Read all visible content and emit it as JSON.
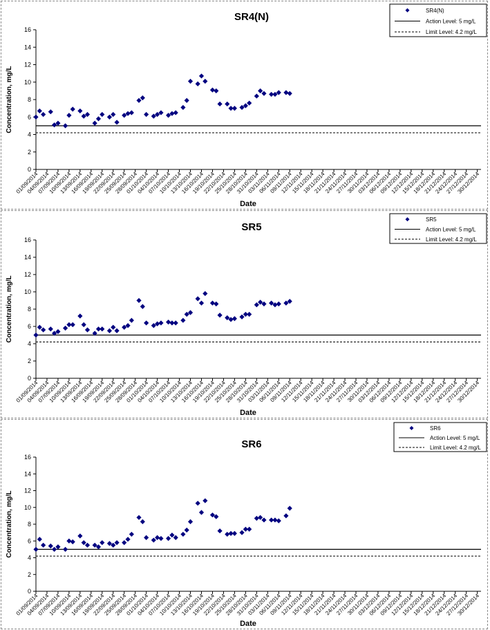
{
  "chart_data": [
    {
      "type": "scatter",
      "title": "SR4(N)",
      "xlabel": "Date",
      "ylabel": "Concentration, mg/L",
      "ylim": [
        0,
        16
      ],
      "yticks": [
        "0",
        "2",
        "4",
        "6",
        "8",
        "10",
        "12",
        "14",
        "16"
      ],
      "xlim": [
        "01/09/2014",
        "31/12/2014"
      ],
      "xticks": [
        "01/09/2014",
        "04/09/2014",
        "07/09/2014",
        "10/09/2014",
        "13/09/2014",
        "16/09/2014",
        "19/09/2014",
        "22/09/2014",
        "25/09/2014",
        "28/09/2014",
        "01/10/2014",
        "04/10/2014",
        "07/10/2014",
        "10/10/2014",
        "13/10/2014",
        "16/10/2014",
        "19/10/2014",
        "22/10/2014",
        "25/10/2014",
        "28/10/2014",
        "31/10/2014",
        "03/11/2014",
        "06/11/2014",
        "09/11/2014",
        "12/11/2014",
        "15/11/2014",
        "18/11/2014",
        "21/11/2014",
        "24/11/2014",
        "27/11/2014",
        "30/11/2014",
        "03/12/2014",
        "06/12/2014",
        "09/12/2014",
        "12/12/2014",
        "15/12/2014",
        "18/12/2014",
        "21/12/2014",
        "24/12/2014",
        "27/12/2014",
        "30/12/2014"
      ],
      "grid": false,
      "legend_position": "top-right",
      "marker_color": "#000080",
      "series": [
        {
          "name": "SR4(N)",
          "points": [
            {
              "x": "01/09/2014",
              "y": 6.0
            },
            {
              "x": "02/09/2014",
              "y": 6.7
            },
            {
              "x": "03/09/2014",
              "y": 6.3
            },
            {
              "x": "05/09/2014",
              "y": 6.6
            },
            {
              "x": "06/09/2014",
              "y": 5.1
            },
            {
              "x": "07/09/2014",
              "y": 5.3
            },
            {
              "x": "09/09/2014",
              "y": 5.0
            },
            {
              "x": "10/09/2014",
              "y": 6.2
            },
            {
              "x": "11/09/2014",
              "y": 6.9
            },
            {
              "x": "13/09/2014",
              "y": 6.7
            },
            {
              "x": "14/09/2014",
              "y": 6.1
            },
            {
              "x": "15/09/2014",
              "y": 6.3
            },
            {
              "x": "17/09/2014",
              "y": 5.3
            },
            {
              "x": "18/09/2014",
              "y": 5.8
            },
            {
              "x": "19/09/2014",
              "y": 6.3
            },
            {
              "x": "21/09/2014",
              "y": 6.0
            },
            {
              "x": "22/09/2014",
              "y": 6.3
            },
            {
              "x": "23/09/2014",
              "y": 5.4
            },
            {
              "x": "25/09/2014",
              "y": 6.2
            },
            {
              "x": "26/09/2014",
              "y": 6.4
            },
            {
              "x": "27/09/2014",
              "y": 6.5
            },
            {
              "x": "29/09/2014",
              "y": 7.9
            },
            {
              "x": "30/09/2014",
              "y": 8.2
            },
            {
              "x": "01/10/2014",
              "y": 6.3
            },
            {
              "x": "03/10/2014",
              "y": 6.1
            },
            {
              "x": "04/10/2014",
              "y": 6.3
            },
            {
              "x": "05/10/2014",
              "y": 6.5
            },
            {
              "x": "07/10/2014",
              "y": 6.2
            },
            {
              "x": "08/10/2014",
              "y": 6.4
            },
            {
              "x": "09/10/2014",
              "y": 6.5
            },
            {
              "x": "11/10/2014",
              "y": 7.1
            },
            {
              "x": "12/10/2014",
              "y": 7.9
            },
            {
              "x": "13/10/2014",
              "y": 10.1
            },
            {
              "x": "15/10/2014",
              "y": 9.8
            },
            {
              "x": "16/10/2014",
              "y": 10.7
            },
            {
              "x": "17/10/2014",
              "y": 10.1
            },
            {
              "x": "19/10/2014",
              "y": 9.1
            },
            {
              "x": "20/10/2014",
              "y": 9.0
            },
            {
              "x": "21/10/2014",
              "y": 7.5
            },
            {
              "x": "23/10/2014",
              "y": 7.5
            },
            {
              "x": "24/10/2014",
              "y": 7.0
            },
            {
              "x": "25/10/2014",
              "y": 7.0
            },
            {
              "x": "27/10/2014",
              "y": 7.1
            },
            {
              "x": "28/10/2014",
              "y": 7.3
            },
            {
              "x": "29/10/2014",
              "y": 7.6
            },
            {
              "x": "31/10/2014",
              "y": 8.4
            },
            {
              "x": "01/11/2014",
              "y": 9.0
            },
            {
              "x": "02/11/2014",
              "y": 8.7
            },
            {
              "x": "04/11/2014",
              "y": 8.6
            },
            {
              "x": "05/11/2014",
              "y": 8.6
            },
            {
              "x": "06/11/2014",
              "y": 8.8
            },
            {
              "x": "08/11/2014",
              "y": 8.8
            },
            {
              "x": "09/11/2014",
              "y": 8.7
            }
          ]
        },
        {
          "name": "Action Level: 5 mg/L",
          "line_style": "solid",
          "y": 5.0
        },
        {
          "name": "Limit Level: 4.2 mg/L",
          "line_style": "dashed",
          "y": 4.2
        }
      ]
    },
    {
      "type": "scatter",
      "title": "SR5",
      "xlabel": "Date",
      "ylabel": "Concentration, mg/L",
      "ylim": [
        0,
        16
      ],
      "yticks": [
        "0",
        "2",
        "4",
        "6",
        "8",
        "10",
        "12",
        "14",
        "16"
      ],
      "xlim": [
        "01/09/2014",
        "31/12/2014"
      ],
      "xticks": [
        "01/09/2014",
        "04/09/2014",
        "07/09/2014",
        "10/09/2014",
        "13/09/2014",
        "16/09/2014",
        "19/09/2014",
        "22/09/2014",
        "25/09/2014",
        "28/09/2014",
        "01/10/2014",
        "04/10/2014",
        "07/10/2014",
        "10/10/2014",
        "13/10/2014",
        "16/10/2014",
        "19/10/2014",
        "22/10/2014",
        "25/10/2014",
        "28/10/2014",
        "31/10/2014",
        "03/11/2014",
        "06/11/2014",
        "09/11/2014",
        "12/11/2014",
        "15/11/2014",
        "18/11/2014",
        "21/11/2014",
        "24/11/2014",
        "27/11/2014",
        "30/11/2014",
        "03/12/2014",
        "06/12/2014",
        "09/12/2014",
        "12/12/2014",
        "15/12/2014",
        "18/12/2014",
        "21/12/2014",
        "24/12/2014",
        "27/12/2014",
        "30/12/2014"
      ],
      "grid": false,
      "legend_position": "top-right",
      "marker_color": "#000080",
      "series": [
        {
          "name": "SR5",
          "points": [
            {
              "x": "01/09/2014",
              "y": 5.0
            },
            {
              "x": "02/09/2014",
              "y": 5.9
            },
            {
              "x": "03/09/2014",
              "y": 5.6
            },
            {
              "x": "05/09/2014",
              "y": 5.7
            },
            {
              "x": "06/09/2014",
              "y": 5.2
            },
            {
              "x": "07/09/2014",
              "y": 5.4
            },
            {
              "x": "09/09/2014",
              "y": 5.8
            },
            {
              "x": "10/09/2014",
              "y": 6.2
            },
            {
              "x": "11/09/2014",
              "y": 6.2
            },
            {
              "x": "13/09/2014",
              "y": 7.2
            },
            {
              "x": "14/09/2014",
              "y": 6.2
            },
            {
              "x": "15/09/2014",
              "y": 5.6
            },
            {
              "x": "17/09/2014",
              "y": 5.2
            },
            {
              "x": "18/09/2014",
              "y": 5.7
            },
            {
              "x": "19/09/2014",
              "y": 5.7
            },
            {
              "x": "21/09/2014",
              "y": 5.5
            },
            {
              "x": "22/09/2014",
              "y": 5.9
            },
            {
              "x": "23/09/2014",
              "y": 5.5
            },
            {
              "x": "25/09/2014",
              "y": 5.9
            },
            {
              "x": "26/09/2014",
              "y": 6.1
            },
            {
              "x": "27/09/2014",
              "y": 6.7
            },
            {
              "x": "29/09/2014",
              "y": 9.0
            },
            {
              "x": "30/09/2014",
              "y": 8.3
            },
            {
              "x": "01/10/2014",
              "y": 6.4
            },
            {
              "x": "03/10/2014",
              "y": 6.1
            },
            {
              "x": "04/10/2014",
              "y": 6.3
            },
            {
              "x": "05/10/2014",
              "y": 6.4
            },
            {
              "x": "07/10/2014",
              "y": 6.5
            },
            {
              "x": "08/10/2014",
              "y": 6.4
            },
            {
              "x": "09/10/2014",
              "y": 6.4
            },
            {
              "x": "11/10/2014",
              "y": 6.7
            },
            {
              "x": "12/10/2014",
              "y": 7.4
            },
            {
              "x": "13/10/2014",
              "y": 7.6
            },
            {
              "x": "15/10/2014",
              "y": 9.2
            },
            {
              "x": "16/10/2014",
              "y": 8.7
            },
            {
              "x": "17/10/2014",
              "y": 9.8
            },
            {
              "x": "19/10/2014",
              "y": 8.7
            },
            {
              "x": "20/10/2014",
              "y": 8.6
            },
            {
              "x": "21/10/2014",
              "y": 7.3
            },
            {
              "x": "23/10/2014",
              "y": 7.0
            },
            {
              "x": "24/10/2014",
              "y": 6.8
            },
            {
              "x": "25/10/2014",
              "y": 6.9
            },
            {
              "x": "27/10/2014",
              "y": 7.1
            },
            {
              "x": "28/10/2014",
              "y": 7.4
            },
            {
              "x": "29/10/2014",
              "y": 7.4
            },
            {
              "x": "31/10/2014",
              "y": 8.5
            },
            {
              "x": "01/11/2014",
              "y": 8.8
            },
            {
              "x": "02/11/2014",
              "y": 8.6
            },
            {
              "x": "04/11/2014",
              "y": 8.7
            },
            {
              "x": "05/11/2014",
              "y": 8.5
            },
            {
              "x": "06/11/2014",
              "y": 8.6
            },
            {
              "x": "08/11/2014",
              "y": 8.7
            },
            {
              "x": "09/11/2014",
              "y": 8.9
            }
          ]
        },
        {
          "name": "Action Level: 5 mg/L",
          "line_style": "solid",
          "y": 5.0
        },
        {
          "name": "Limit Level: 4.2 mg/L",
          "line_style": "dashed",
          "y": 4.2
        }
      ]
    },
    {
      "type": "scatter",
      "title": "SR6",
      "xlabel": "Date",
      "ylabel": "Concentration, mg/L",
      "ylim": [
        0,
        16
      ],
      "yticks": [
        "0",
        "2",
        "4",
        "6",
        "8",
        "10",
        "12",
        "14",
        "16"
      ],
      "xlim": [
        "01/09/2014",
        "31/12/2014"
      ],
      "xticks": [
        "01/09/2014",
        "04/09/2014",
        "07/09/2014",
        "10/09/2014",
        "13/09/2014",
        "16/09/2014",
        "19/09/2014",
        "22/09/2014",
        "25/09/2014",
        "28/09/2014",
        "01/10/2014",
        "04/10/2014",
        "07/10/2014",
        "10/10/2014",
        "13/10/2014",
        "16/10/2014",
        "19/10/2014",
        "22/10/2014",
        "25/10/2014",
        "28/10/2014",
        "31/10/2014",
        "03/11/2014",
        "06/11/2014",
        "09/11/2014",
        "12/11/2014",
        "15/11/2014",
        "18/11/2014",
        "21/11/2014",
        "24/11/2014",
        "27/11/2014",
        "30/11/2014",
        "03/12/2014",
        "06/12/2014",
        "09/12/2014",
        "12/12/2014",
        "15/12/2014",
        "18/12/2014",
        "21/12/2014",
        "24/12/2014",
        "27/12/2014",
        "30/12/2014"
      ],
      "grid": false,
      "legend_position": "top-right",
      "marker_color": "#000080",
      "series": [
        {
          "name": "SR6",
          "points": [
            {
              "x": "01/09/2014",
              "y": 5.0
            },
            {
              "x": "02/09/2014",
              "y": 6.2
            },
            {
              "x": "03/09/2014",
              "y": 5.5
            },
            {
              "x": "05/09/2014",
              "y": 5.4
            },
            {
              "x": "06/09/2014",
              "y": 5.0
            },
            {
              "x": "07/09/2014",
              "y": 5.3
            },
            {
              "x": "09/09/2014",
              "y": 5.0
            },
            {
              "x": "10/09/2014",
              "y": 6.0
            },
            {
              "x": "11/09/2014",
              "y": 5.9
            },
            {
              "x": "13/09/2014",
              "y": 6.6
            },
            {
              "x": "14/09/2014",
              "y": 5.8
            },
            {
              "x": "15/09/2014",
              "y": 5.5
            },
            {
              "x": "17/09/2014",
              "y": 5.5
            },
            {
              "x": "18/09/2014",
              "y": 5.3
            },
            {
              "x": "19/09/2014",
              "y": 5.8
            },
            {
              "x": "21/09/2014",
              "y": 5.7
            },
            {
              "x": "22/09/2014",
              "y": 5.5
            },
            {
              "x": "23/09/2014",
              "y": 5.8
            },
            {
              "x": "25/09/2014",
              "y": 5.8
            },
            {
              "x": "26/09/2014",
              "y": 6.2
            },
            {
              "x": "27/09/2014",
              "y": 6.8
            },
            {
              "x": "29/09/2014",
              "y": 8.8
            },
            {
              "x": "30/09/2014",
              "y": 8.3
            },
            {
              "x": "01/10/2014",
              "y": 6.4
            },
            {
              "x": "03/10/2014",
              "y": 6.1
            },
            {
              "x": "04/10/2014",
              "y": 6.4
            },
            {
              "x": "05/10/2014",
              "y": 6.3
            },
            {
              "x": "07/10/2014",
              "y": 6.3
            },
            {
              "x": "08/10/2014",
              "y": 6.7
            },
            {
              "x": "09/10/2014",
              "y": 6.4
            },
            {
              "x": "11/10/2014",
              "y": 6.8
            },
            {
              "x": "12/10/2014",
              "y": 7.3
            },
            {
              "x": "13/10/2014",
              "y": 8.3
            },
            {
              "x": "15/10/2014",
              "y": 10.5
            },
            {
              "x": "16/10/2014",
              "y": 9.4
            },
            {
              "x": "17/10/2014",
              "y": 10.8
            },
            {
              "x": "19/10/2014",
              "y": 9.1
            },
            {
              "x": "20/10/2014",
              "y": 8.9
            },
            {
              "x": "21/10/2014",
              "y": 7.2
            },
            {
              "x": "23/10/2014",
              "y": 6.8
            },
            {
              "x": "24/10/2014",
              "y": 6.9
            },
            {
              "x": "25/10/2014",
              "y": 6.9
            },
            {
              "x": "27/10/2014",
              "y": 7.0
            },
            {
              "x": "28/10/2014",
              "y": 7.4
            },
            {
              "x": "29/10/2014",
              "y": 7.4
            },
            {
              "x": "31/10/2014",
              "y": 8.7
            },
            {
              "x": "01/11/2014",
              "y": 8.8
            },
            {
              "x": "02/11/2014",
              "y": 8.5
            },
            {
              "x": "04/11/2014",
              "y": 8.5
            },
            {
              "x": "05/11/2014",
              "y": 8.5
            },
            {
              "x": "06/11/2014",
              "y": 8.4
            },
            {
              "x": "08/11/2014",
              "y": 9.0
            },
            {
              "x": "09/11/2014",
              "y": 9.9
            }
          ]
        },
        {
          "name": "Action Level: 5 mg/L",
          "line_style": "solid",
          "y": 5.0
        },
        {
          "name": "Limit Level: 4.2 mg/L",
          "line_style": "dashed",
          "y": 4.2
        }
      ]
    }
  ]
}
